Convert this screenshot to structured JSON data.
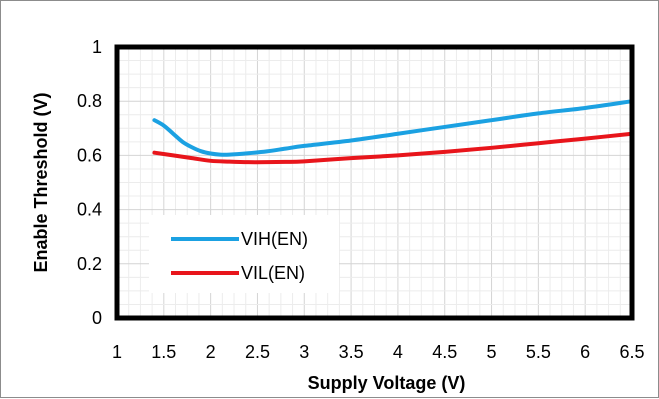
{
  "chart_data": {
    "type": "line",
    "title": "",
    "xlabel": "Supply Voltage (V)",
    "ylabel": "Enable Threshold (V)",
    "xlim": [
      1,
      6.5
    ],
    "ylim": [
      0,
      1
    ],
    "x_ticks": [
      "1",
      "1.5",
      "2",
      "2.5",
      "3",
      "3.5",
      "4",
      "4.5",
      "5",
      "5.5",
      "6",
      "6.5"
    ],
    "y_ticks": [
      "0",
      "0.2",
      "0.4",
      "0.6",
      "0.8",
      "1"
    ],
    "grid": true,
    "legend_position": "lower-left",
    "series": [
      {
        "name": "VIH(EN)",
        "color": "#1ba1e2",
        "x": [
          1.4,
          1.5,
          1.6,
          1.7,
          1.8,
          1.9,
          2.0,
          2.1,
          2.2,
          2.4,
          2.6,
          2.8,
          3.0,
          3.5,
          4.0,
          4.5,
          5.0,
          5.5,
          6.0,
          6.5
        ],
        "y": [
          0.73,
          0.71,
          0.68,
          0.65,
          0.63,
          0.615,
          0.607,
          0.603,
          0.603,
          0.608,
          0.615,
          0.625,
          0.635,
          0.655,
          0.68,
          0.705,
          0.73,
          0.755,
          0.775,
          0.8
        ]
      },
      {
        "name": "VIL(EN)",
        "color": "#e8151b",
        "x": [
          1.4,
          1.6,
          1.8,
          2.0,
          2.2,
          2.4,
          2.6,
          2.8,
          3.0,
          3.5,
          4.0,
          4.5,
          5.0,
          5.5,
          6.0,
          6.5
        ],
        "y": [
          0.61,
          0.6,
          0.59,
          0.58,
          0.577,
          0.575,
          0.575,
          0.576,
          0.578,
          0.59,
          0.6,
          0.613,
          0.628,
          0.645,
          0.662,
          0.68
        ]
      }
    ]
  }
}
